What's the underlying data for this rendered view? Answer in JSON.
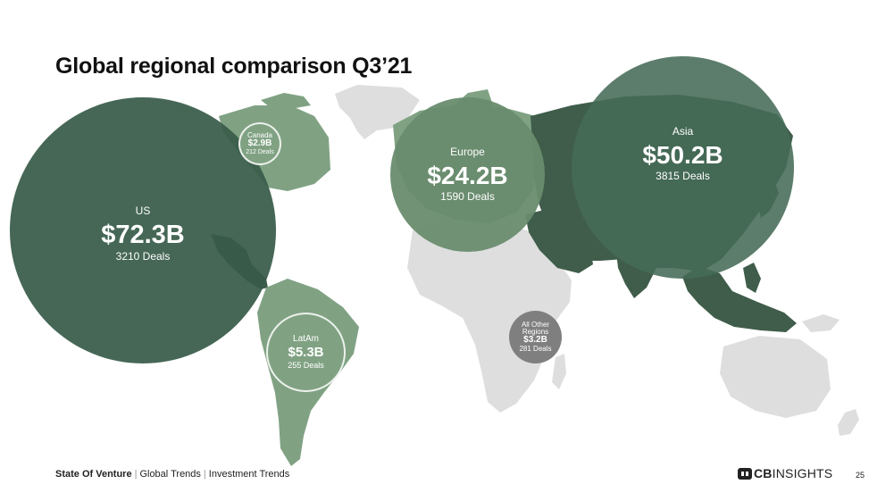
{
  "title": "Global regional comparison Q3’21",
  "colors": {
    "land_base": "#dedede",
    "land_green": "#80a283",
    "land_dark": "#3f5d4a",
    "bubble_us": "#3e5f4d",
    "bubble_asia": "#4e6e5a",
    "bubble_europe": "#6f8f74",
    "bubble_small_green": "#80a283",
    "bubble_other": "#7f7f7f"
  },
  "regions": {
    "us": {
      "name": "US",
      "amount": "$72.3B",
      "deals": "3210 Deals"
    },
    "canada": {
      "name": "Canada",
      "amount": "$2.9B",
      "deals": "212 Deals"
    },
    "latam": {
      "name": "LatAm",
      "amount": "$5.3B",
      "deals": "255 Deals"
    },
    "europe": {
      "name": "Europe",
      "amount": "$24.2B",
      "deals": "1590 Deals"
    },
    "asia": {
      "name": "Asia",
      "amount": "$50.2B",
      "deals": "3815 Deals"
    },
    "other": {
      "name": "All Other Regions",
      "amount": "$3.2B",
      "deals": "281 Deals"
    }
  },
  "footer": {
    "report": "State Of Venture",
    "section1": "Global Trends",
    "section2": "Investment Trends",
    "separator": "|"
  },
  "logo": {
    "prefix": "CB",
    "suffix": "INSIGHTS"
  },
  "page_number": "25"
}
